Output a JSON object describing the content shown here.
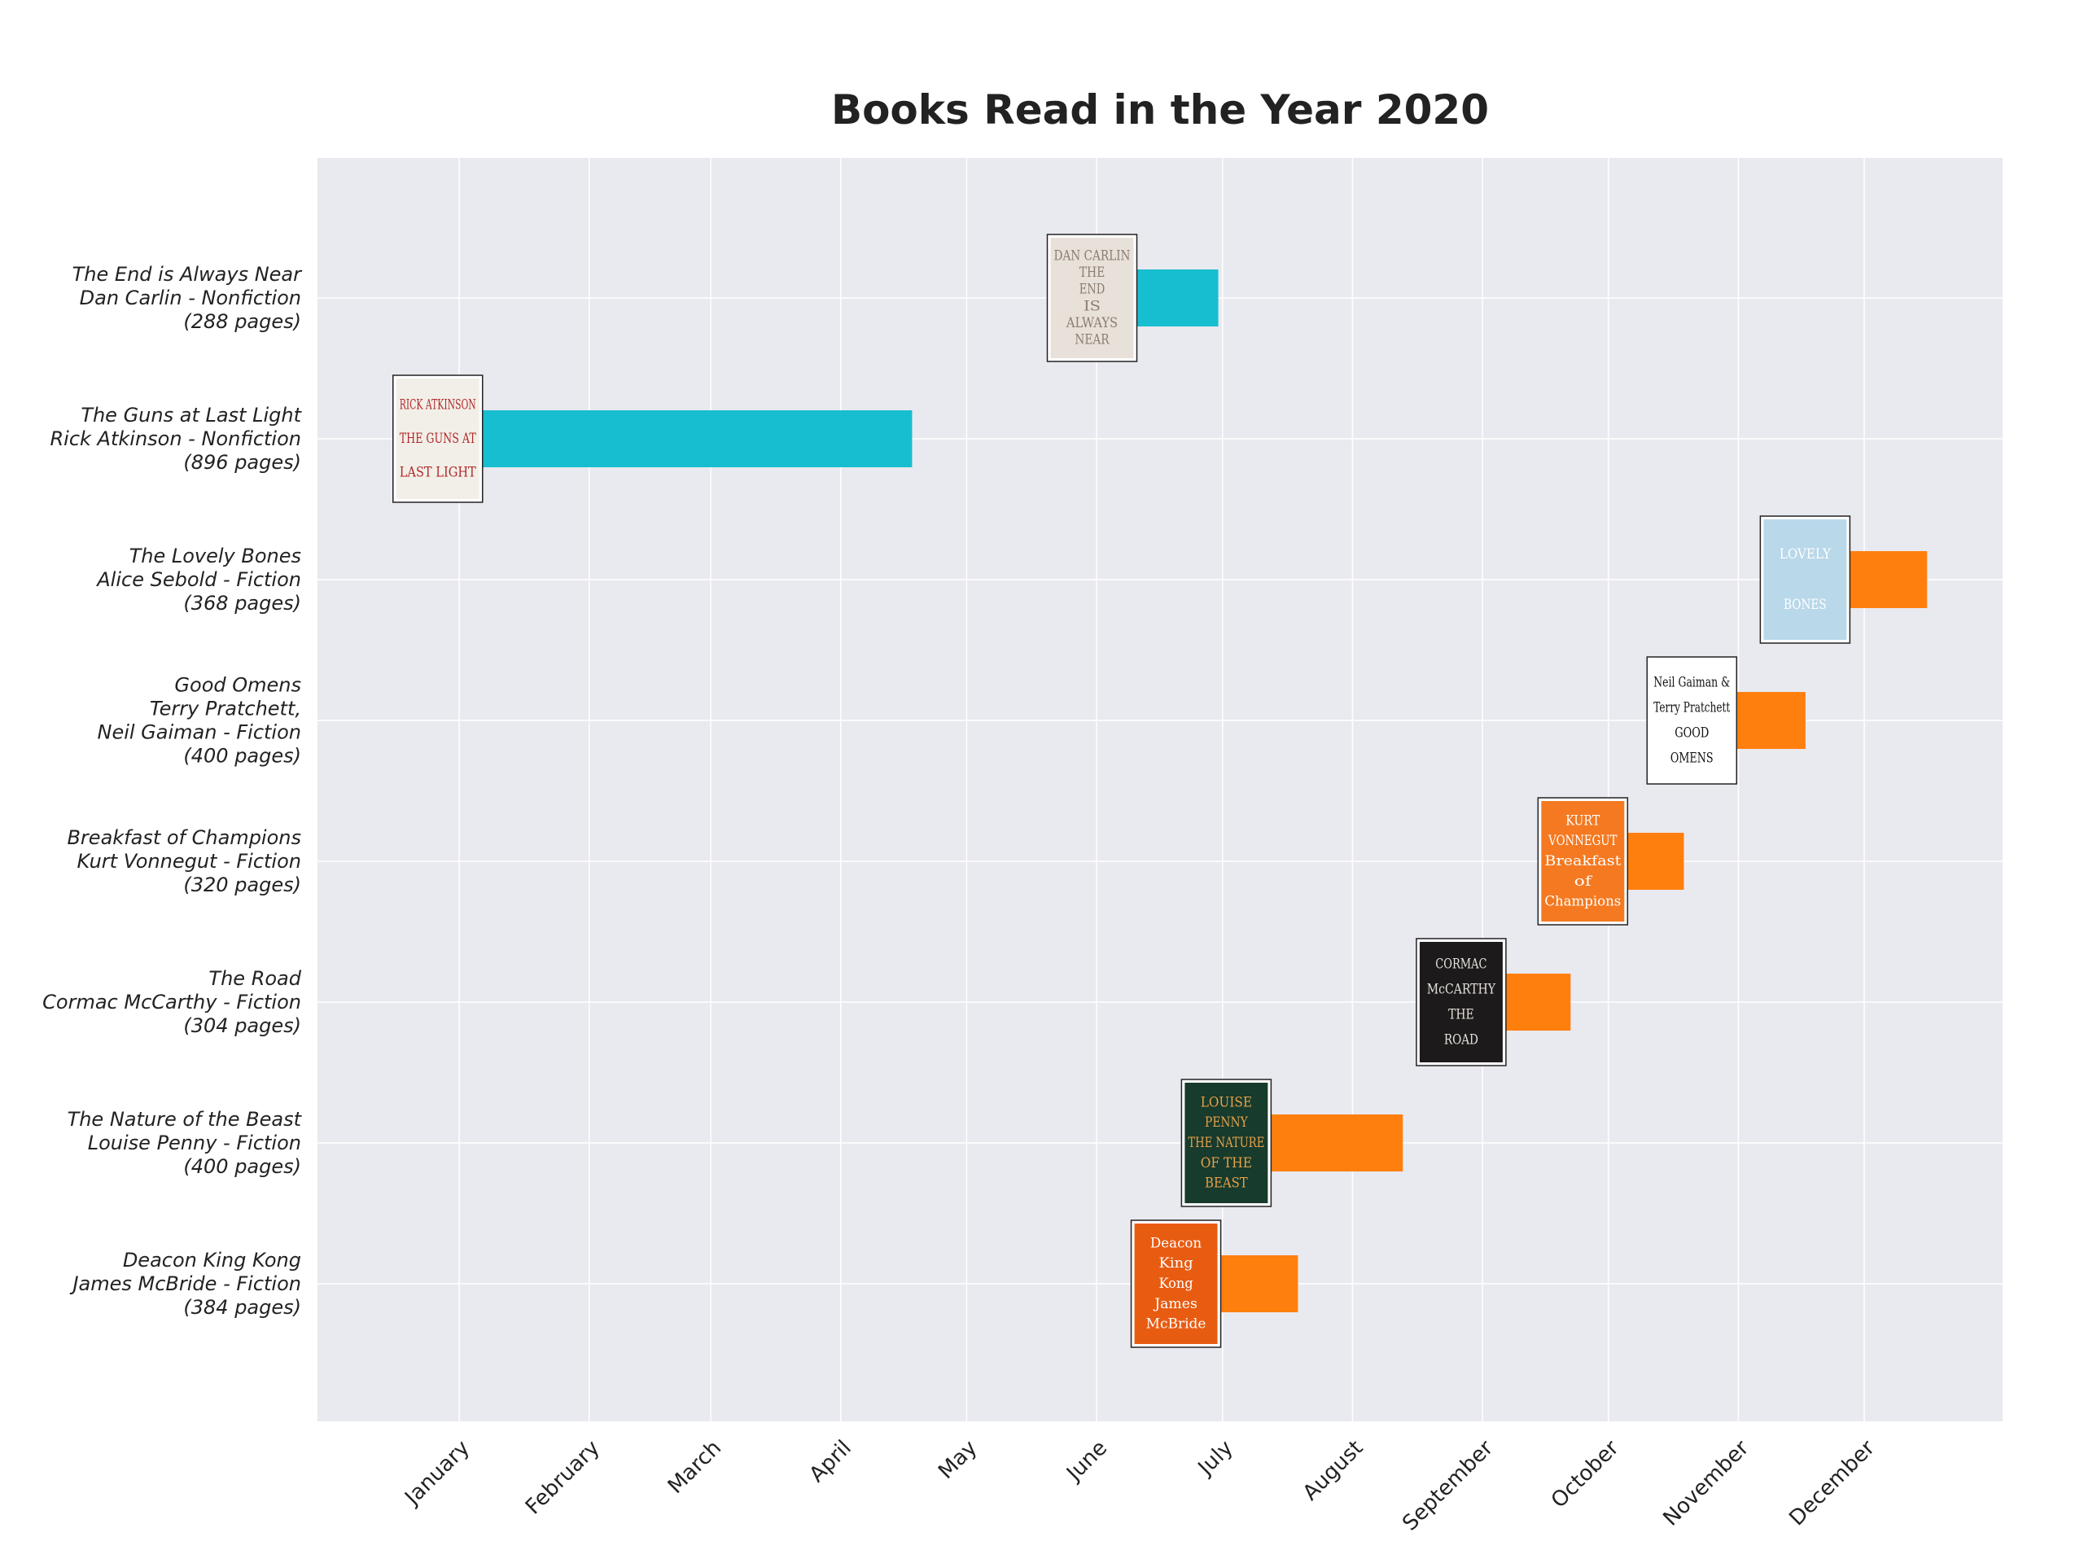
{
  "chart_data": {
    "type": "bar",
    "orientation": "horizontal",
    "title": "Books Read in the Year 2020",
    "xlabel": "",
    "ylabel": "",
    "x_axis": "date",
    "xlim": [
      "2020-01-01",
      "2020-12-31"
    ],
    "x_ticks": [
      "January",
      "February",
      "March",
      "April",
      "May",
      "June",
      "July",
      "August",
      "September",
      "October",
      "November",
      "December"
    ],
    "grid": true,
    "legend": false,
    "colors": {
      "Fiction": "#ff7f0e",
      "Nonfiction": "#17becf",
      "plot_background": "#e9e9f0",
      "grid": "#ffffff"
    },
    "books": [
      {
        "title": "The End is Always Near",
        "label_lines": [
          "The End is Always Near",
          "Dan Carlin - Nonfiction",
          "(288 pages)"
        ],
        "genre": "Nonfiction",
        "start": "2020-06-10",
        "end": "2020-06-30",
        "cover": {
          "bg": "#e8e1da",
          "fg": "#8a7c70",
          "text": [
            "DAN CARLIN",
            "THE",
            "END",
            "IS",
            "ALWAYS",
            "NEAR"
          ]
        }
      },
      {
        "title": "The Guns at Last Light",
        "label_lines": [
          "The Guns at Last Light",
          "Rick Atkinson - Nonfiction",
          "(896 pages)"
        ],
        "genre": "Nonfiction",
        "start": "2020-01-06",
        "end": "2020-04-18",
        "cover": {
          "bg": "#f2efe8",
          "fg": "#b0282a",
          "text": [
            "RICK ATKINSON",
            "THE GUNS AT",
            "LAST LIGHT"
          ]
        }
      },
      {
        "title": "The Lovely Bones",
        "label_lines": [
          "The Lovely Bones",
          "Alice Sebold - Fiction",
          "(368 pages)"
        ],
        "genre": "Fiction",
        "start": "2020-11-27",
        "end": "2020-12-16",
        "cover": {
          "bg": "#b9d8ea",
          "fg": "#ffffff",
          "text": [
            "LOVELY",
            "BONES"
          ]
        }
      },
      {
        "title": "Good Omens",
        "label_lines": [
          "Good Omens",
          "Terry Pratchett,",
          "Neil Gaiman - Fiction",
          "(400 pages)"
        ],
        "genre": "Fiction",
        "start": "2020-10-31",
        "end": "2020-11-17",
        "cover": {
          "bg": "#ffffff",
          "fg": "#111111",
          "text": [
            "Neil Gaiman &",
            "Terry Pratchett",
            "GOOD",
            "OMENS"
          ]
        }
      },
      {
        "title": "Breakfast of Champions",
        "label_lines": [
          "Breakfast of Champions",
          "Kurt Vonnegut - Fiction",
          "(320 pages)"
        ],
        "genre": "Fiction",
        "start": "2020-10-05",
        "end": "2020-10-19",
        "cover": {
          "bg": "#f47920",
          "fg": "#ffffff",
          "text": [
            "KURT",
            "VONNEGUT",
            "Breakfast",
            "of",
            "Champions"
          ]
        }
      },
      {
        "title": "The Road",
        "label_lines": [
          "The Road",
          "Cormac McCarthy - Fiction",
          "(304 pages)"
        ],
        "genre": "Fiction",
        "start": "2020-09-06",
        "end": "2020-09-22",
        "cover": {
          "bg": "#1c1a1a",
          "fg": "#e7e2dc",
          "text": [
            "CORMAC",
            "McCARTHY",
            "THE",
            "ROAD"
          ]
        }
      },
      {
        "title": "The Nature of the Beast",
        "label_lines": [
          "The Nature of the Beast",
          "Louise Penny - Fiction",
          "(400 pages)"
        ],
        "genre": "Fiction",
        "start": "2020-07-12",
        "end": "2020-08-13",
        "cover": {
          "bg": "#173b2c",
          "fg": "#e8a14a",
          "text": [
            "LOUISE",
            "PENNY",
            "THE NATURE",
            "OF THE",
            "BEAST"
          ]
        }
      },
      {
        "title": "Deacon King Kong",
        "label_lines": [
          "Deacon King Kong",
          "James McBride - Fiction",
          "(384 pages)"
        ],
        "genre": "Fiction",
        "start": "2020-06-30",
        "end": "2020-07-19",
        "cover": {
          "bg": "#e85c12",
          "fg": "#ffffff",
          "text": [
            "Deacon",
            "King",
            "Kong",
            "James",
            "McBride"
          ]
        }
      }
    ]
  }
}
